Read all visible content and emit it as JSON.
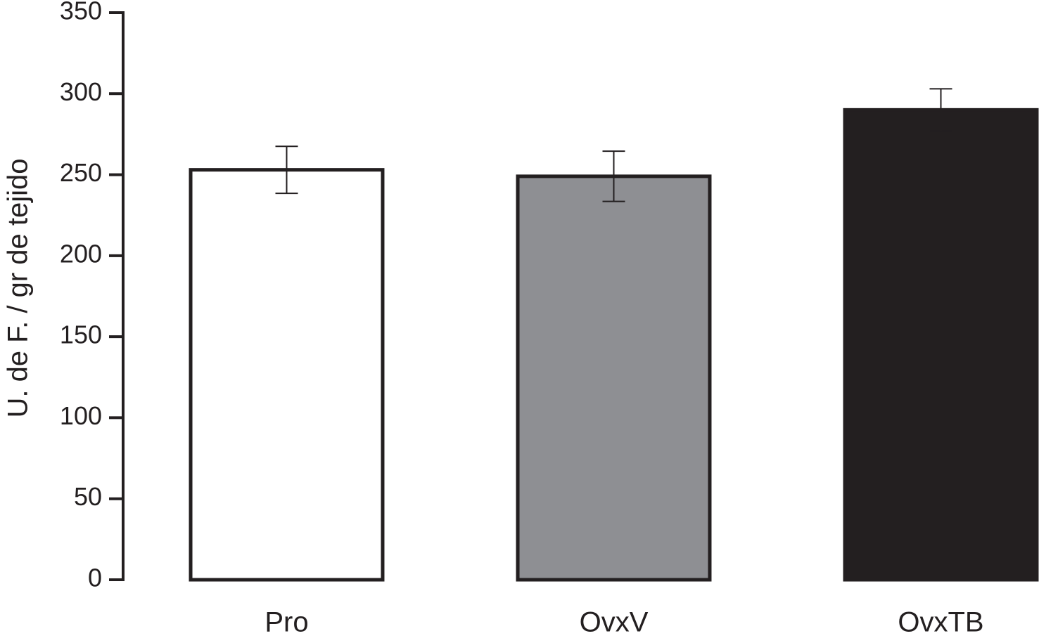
{
  "chart_data": {
    "type": "bar",
    "y_label": "U. de F. / gr de tejido",
    "categories": [
      "Pro",
      "OvxV",
      "OvxTB"
    ],
    "values": [
      253,
      249,
      290
    ],
    "errors": [
      14.5,
      15.5,
      13
    ],
    "colors": [
      "#ffffff",
      "#8e8f93",
      "#231f20"
    ],
    "ylim": [
      0,
      350
    ],
    "yticks": [
      0,
      50,
      100,
      150,
      200,
      250,
      300,
      350
    ]
  }
}
